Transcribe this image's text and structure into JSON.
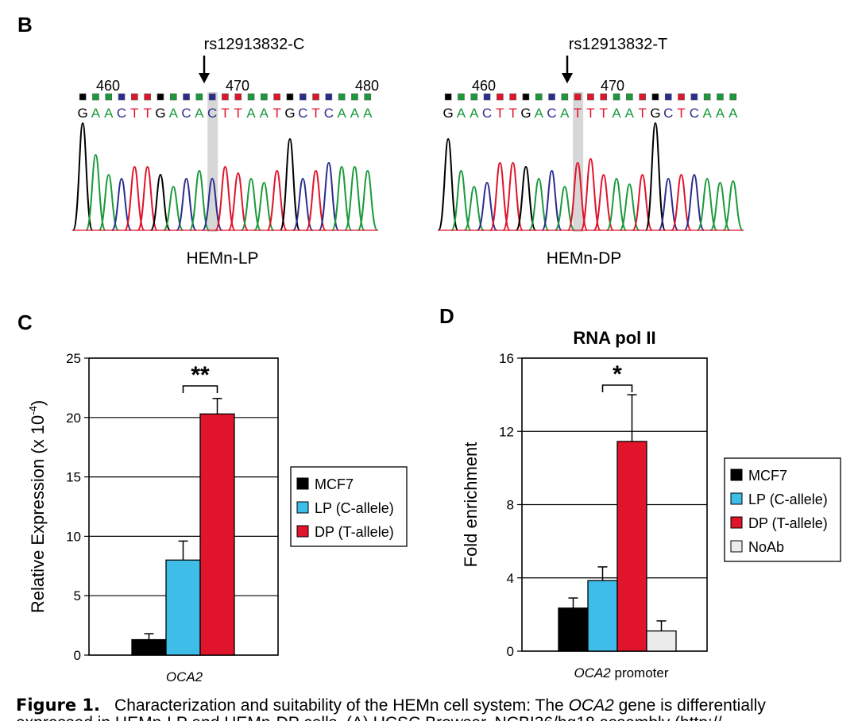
{
  "panel_b": {
    "label": "B",
    "traces": [
      {
        "annotation": "rs12913832-C",
        "sample": "HEMn-LP",
        "ruler": [
          "460",
          "470",
          "480"
        ],
        "sequence": "GAACTTGACACTTAATGCTCAAA",
        "highlight_index": 10
      },
      {
        "annotation": "rs12913832-T",
        "sample": "HEMn-DP",
        "ruler": [
          "460",
          "470"
        ],
        "sequence": "GAACTTGACATTTAATGCTCAAA",
        "highlight_index": 10
      }
    ],
    "base_colors": {
      "A": "#1a9a3a",
      "C": "#2b2d8e",
      "G": "#000000",
      "T": "#e0142b"
    }
  },
  "chart_data": [
    {
      "type": "bar",
      "panel": "C",
      "title": "",
      "xlabel": "OCA2",
      "ylabel": "Relative Expression (x 10-4)",
      "ylim": [
        0,
        25
      ],
      "yticks": [
        "0",
        "5",
        "10",
        "15",
        "20",
        "25"
      ],
      "grid": true,
      "legend_position": "right",
      "series": [
        {
          "name": "MCF7",
          "value": 1.3,
          "error": 0.5,
          "color": "#000000"
        },
        {
          "name": "LP (C-allele)",
          "value": 8.0,
          "error": 1.6,
          "color": "#3dbde8"
        },
        {
          "name": "DP (T-allele)",
          "value": 20.3,
          "error": 1.3,
          "color": "#e0142b"
        }
      ],
      "significance": [
        {
          "between": [
            1,
            2
          ],
          "label": "**"
        }
      ]
    },
    {
      "type": "bar",
      "panel": "D",
      "title": "RNA pol II",
      "xlabel": "OCA2 promoter",
      "ylabel": "Fold enrichment",
      "ylim": [
        0,
        16
      ],
      "yticks": [
        "0",
        "4",
        "8",
        "12",
        "16"
      ],
      "grid": true,
      "legend_position": "right",
      "series": [
        {
          "name": "MCF7",
          "value": 2.35,
          "error": 0.55,
          "color": "#000000"
        },
        {
          "name": "LP (C-allele)",
          "value": 3.85,
          "error": 0.75,
          "color": "#3dbde8"
        },
        {
          "name": "DP (T-allele)",
          "value": 11.45,
          "error": 2.55,
          "color": "#e0142b"
        },
        {
          "name": "NoAb",
          "value": 1.1,
          "error": 0.55,
          "color": "#ececec"
        }
      ],
      "significance": [
        {
          "between": [
            1,
            2
          ],
          "label": "*"
        }
      ]
    }
  ],
  "caption": {
    "label": "Figure 1.",
    "text_before": "Characterization and suitability of the HEMn cell system: The ",
    "gene": "OCA2",
    "text_after": " gene is differentially",
    "line2": "expressed in HEMn-LP and HEMn-DP cells. (A) UCSC Browser, NCBI36/hg18 assembly (http://"
  }
}
